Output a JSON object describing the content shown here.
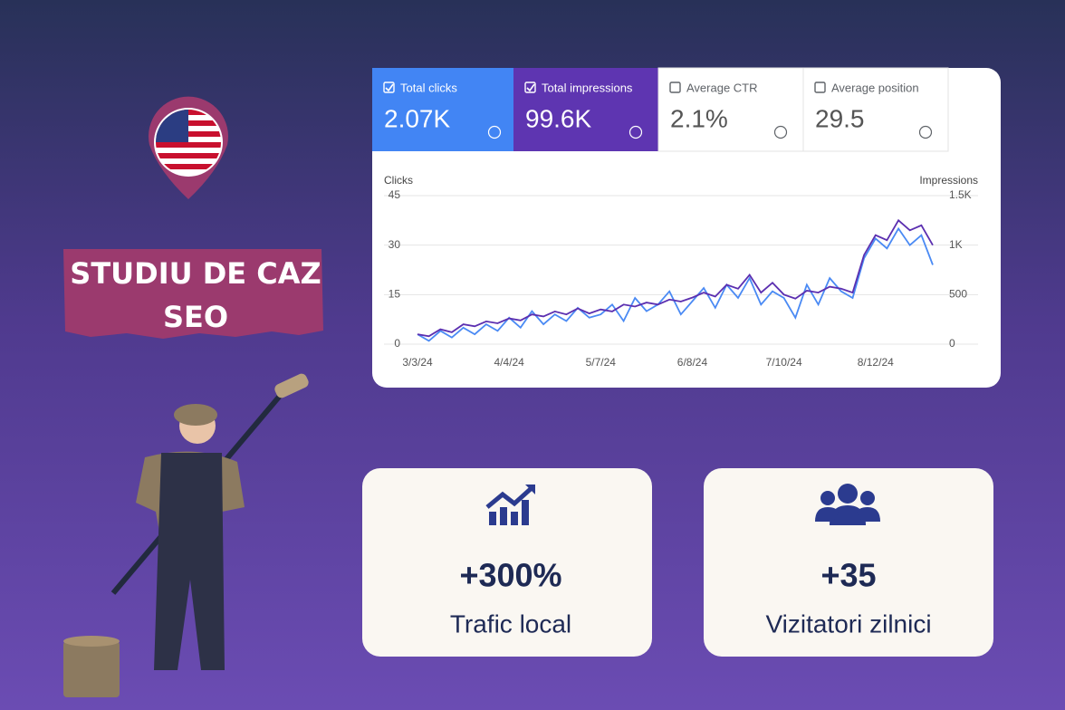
{
  "banner": {
    "line1": "STUDIU DE CAZ",
    "line2": "SEO"
  },
  "metrics": [
    {
      "label": "Total clicks",
      "value": "2.07K",
      "checked": true,
      "color": "#4285f4"
    },
    {
      "label": "Total impressions",
      "value": "99.6K",
      "checked": true,
      "color": "#5e35b1"
    },
    {
      "label": "Average CTR",
      "value": "2.1%",
      "checked": false
    },
    {
      "label": "Average position",
      "value": "29.5",
      "checked": false
    }
  ],
  "stats": [
    {
      "value": "+300%",
      "label": "Trafic local"
    },
    {
      "value": "+35",
      "label": "Vizitatori zilnici"
    }
  ],
  "chart_data": {
    "type": "line",
    "y_label": "Clicks",
    "y2_label": "Impressions",
    "categories": [
      "3/3/24",
      null,
      null,
      null,
      null,
      null,
      null,
      null,
      "4/4/24",
      null,
      null,
      null,
      null,
      null,
      null,
      null,
      "5/7/24",
      null,
      null,
      null,
      null,
      null,
      null,
      null,
      "6/8/24",
      null,
      null,
      null,
      null,
      null,
      null,
      null,
      "7/10/24",
      null,
      null,
      null,
      null,
      null,
      null,
      null,
      "8/12/24",
      null,
      null,
      null,
      null,
      null
    ],
    "series": [
      {
        "name": "Clicks",
        "color": "#4a8af4",
        "values": [
          3,
          1,
          4,
          2,
          5,
          3,
          6,
          4,
          8,
          5,
          10,
          6,
          9,
          7,
          11,
          8,
          9,
          12,
          7,
          14,
          10,
          12,
          16,
          9,
          13,
          17,
          11,
          18,
          14,
          20,
          12,
          16,
          14,
          8,
          18,
          12,
          20,
          16,
          14,
          26,
          32,
          29,
          35,
          30,
          33,
          24
        ]
      },
      {
        "name": "Impressions",
        "color": "#5b2fb0",
        "axis": "y2",
        "values": [
          100,
          80,
          150,
          120,
          200,
          180,
          230,
          210,
          260,
          240,
          300,
          280,
          330,
          300,
          360,
          310,
          350,
          330,
          400,
          380,
          420,
          400,
          450,
          430,
          470,
          520,
          480,
          600,
          560,
          700,
          520,
          620,
          500,
          460,
          540,
          520,
          580,
          560,
          520,
          900,
          1100,
          1050,
          1250,
          1150,
          1200,
          1000
        ]
      }
    ],
    "ylim": [
      0,
      45
    ],
    "yticks": [
      0,
      15,
      30,
      45
    ],
    "y2lim": [
      0,
      1500
    ],
    "y2ticks": [
      0,
      500,
      {
        "value": 1000,
        "label": "1K"
      },
      {
        "value": 1500,
        "label": "1.5K"
      }
    ],
    "grid": true
  }
}
